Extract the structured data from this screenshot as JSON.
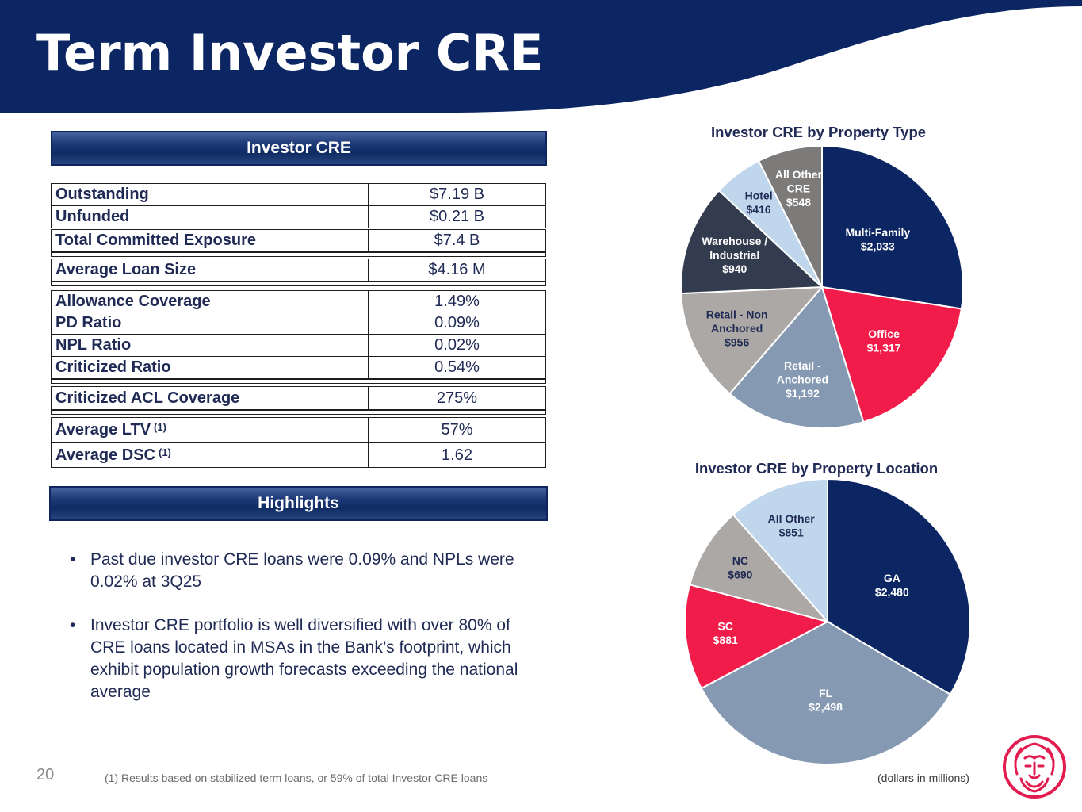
{
  "page": {
    "title": "Term Investor CRE",
    "page_number": "20",
    "footnote": "(1) Results based on stabilized term loans, or 59% of total Investor CRE loans",
    "units_note": "(dollars in millions)"
  },
  "colors": {
    "navy": "#0b2663",
    "red": "#f21c4a",
    "steel": "#8699b2",
    "gray": "#aca8a5",
    "charcoal": "#333c4f",
    "light_blue": "#bfd6ec",
    "dark_gray": "#7d7b79",
    "text": "#1f2a55"
  },
  "investor_table": {
    "heading": "Investor CRE",
    "rows": [
      {
        "label": "Outstanding",
        "value": "$7.19 B"
      },
      {
        "label": "Unfunded",
        "value": "$0.21 B"
      },
      {
        "label": "Total Committed Exposure",
        "value": "$7.4 B"
      },
      {
        "label": "Average Loan Size",
        "value": "$4.16 M"
      },
      {
        "label": "Allowance Coverage",
        "value": "1.49%"
      },
      {
        "label": "PD Ratio",
        "value": "0.09%"
      },
      {
        "label": "NPL Ratio",
        "value": "0.02%"
      },
      {
        "label": "Criticized Ratio",
        "value": "0.54%"
      },
      {
        "label": "Criticized ACL Coverage",
        "value": "275%"
      },
      {
        "label": "Average LTV",
        "note": "(1)",
        "value": "57%"
      },
      {
        "label": "Average DSC",
        "note": "(1)",
        "value": "1.62"
      }
    ]
  },
  "highlights": {
    "heading": "Highlights",
    "bullets": [
      "Past due investor CRE loans were 0.09% and NPLs were 0.02% at 3Q25",
      "Investor CRE portfolio is well diversified with over 80% of CRE loans located in MSAs in the Bank’s footprint, which exhibit population growth forecasts exceeding the national average"
    ]
  },
  "chart_data": [
    {
      "type": "pie",
      "title": "Investor CRE by Property Type",
      "categories": [
        "Multi-Family",
        "Office",
        "Retail - Anchored",
        "Retail - Non Anchored",
        "Warehouse / Industrial",
        "Hotel",
        "All Other CRE"
      ],
      "labels": [
        [
          "Multi-Family",
          "$2,033"
        ],
        [
          "Office",
          "$1,317"
        ],
        [
          "Retail -",
          "Anchored",
          "$1,192"
        ],
        [
          "Retail - Non",
          "Anchored",
          "$956"
        ],
        [
          "Warehouse /",
          "Industrial",
          "$940"
        ],
        [
          "Hotel",
          "$416"
        ],
        [
          "All Other",
          "CRE",
          "$548"
        ]
      ],
      "values": [
        2033,
        1317,
        1192,
        956,
        940,
        416,
        548
      ],
      "colors": [
        "#0b2663",
        "#f21c4a",
        "#8699b2",
        "#aca8a5",
        "#333c4f",
        "#bfd6ec",
        "#7d7b79"
      ],
      "label_colors": [
        "#ffffff",
        "#ffffff",
        "#ffffff",
        "#1f2a55",
        "#ffffff",
        "#1f2a55",
        "#ffffff"
      ]
    },
    {
      "type": "pie",
      "title": "Investor CRE by Property Location",
      "categories": [
        "GA",
        "FL",
        "SC",
        "NC",
        "All Other"
      ],
      "labels": [
        [
          "GA",
          "$2,480"
        ],
        [
          "FL",
          "$2,498"
        ],
        [
          "SC",
          "$881"
        ],
        [
          "NC",
          "$690"
        ],
        [
          "All Other",
          "$851"
        ]
      ],
      "values": [
        2480,
        2498,
        881,
        690,
        851
      ],
      "colors": [
        "#0b2663",
        "#8699b2",
        "#f21c4a",
        "#aca8a5",
        "#bfd6ec"
      ],
      "label_colors": [
        "#ffffff",
        "#ffffff",
        "#ffffff",
        "#1f2a55",
        "#1f2a55"
      ]
    }
  ]
}
